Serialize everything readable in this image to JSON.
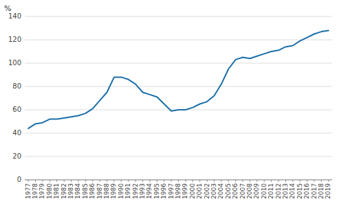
{
  "chart_data": {
    "type": "line",
    "y_label": "%",
    "x": [
      1977,
      1978,
      1979,
      1980,
      1981,
      1982,
      1983,
      1984,
      1985,
      1986,
      1987,
      1988,
      1989,
      1990,
      1991,
      1992,
      1993,
      1994,
      1995,
      1996,
      1997,
      1998,
      1999,
      2000,
      2001,
      2002,
      2003,
      2004,
      2005,
      2006,
      2007,
      2008,
      2009,
      2010,
      2011,
      2012,
      2013,
      2014,
      2015,
      2016,
      2017,
      2018,
      2019
    ],
    "values": [
      44,
      48,
      49,
      52,
      52,
      53,
      54,
      55,
      57,
      61,
      68,
      75,
      88,
      88,
      86,
      82,
      75,
      73,
      71,
      65,
      59,
      60,
      60,
      62,
      65,
      67,
      72,
      82,
      95,
      103,
      105,
      104,
      106,
      108,
      110,
      111,
      114,
      115,
      119,
      122,
      125,
      127,
      128
    ],
    "color": "#1a6ea8",
    "xlim": [
      1976.5,
      2019.5
    ],
    "xticks": [
      1977,
      1978,
      1979,
      1980,
      1981,
      1982,
      1983,
      1984,
      1985,
      1986,
      1987,
      1988,
      1989,
      1990,
      1991,
      1992,
      1993,
      1994,
      1995,
      1996,
      1997,
      1998,
      1999,
      2000,
      2001,
      2002,
      2003,
      2004,
      2005,
      2006,
      2007,
      2008,
      2009,
      2010,
      2011,
      2012,
      2013,
      2014,
      2015,
      2016,
      2017,
      2018,
      2019
    ],
    "ylim": [
      0,
      140
    ],
    "yticks": [
      0,
      20,
      40,
      60,
      80,
      100,
      120,
      140
    ],
    "grid": true
  }
}
